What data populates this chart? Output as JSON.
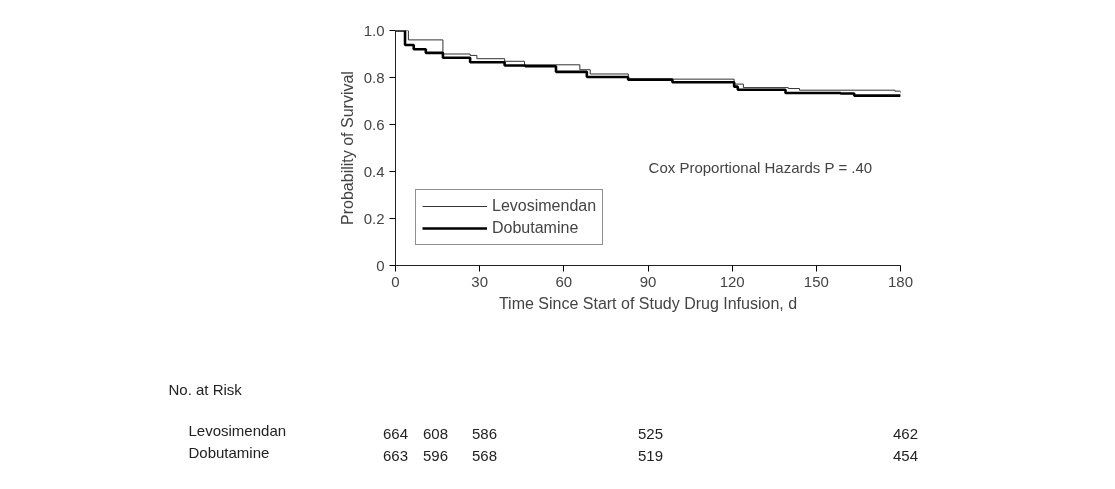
{
  "chart_data": {
    "type": "step",
    "xlabel": "Time Since Start of Study Drug Infusion, d",
    "ylabel": "Probability of Survival",
    "xlim": [
      0,
      180
    ],
    "ylim": [
      0,
      1
    ],
    "xticks": [
      0,
      30,
      60,
      90,
      120,
      150,
      180
    ],
    "yticks": [
      {
        "value": 0,
        "label": "0"
      },
      0.2,
      0.4,
      0.6,
      0.8,
      {
        "value": 1,
        "label": "1.0"
      }
    ],
    "grid": false,
    "legend": "bottom left",
    "marker": "none",
    "line_style": "solid",
    "series": [
      {
        "name": "Levosimendan",
        "color": "#333333",
        "x": [
          0,
          4.6,
          16.9,
          26.6,
          29,
          38.9,
          46,
          65.7,
          69.4,
          83,
          120.7,
          124,
          140,
          144,
          178,
          180
        ],
        "values": [
          1.0,
          0.96,
          0.9,
          0.894,
          0.88,
          0.869,
          0.854,
          0.833,
          0.815,
          0.793,
          0.772,
          0.757,
          0.753,
          0.746,
          0.742,
          0.735
        ]
      },
      {
        "name": "Dobutamine",
        "color": "#000000",
        "x": [
          0,
          3.4,
          6.5,
          10.8,
          16.9,
          26.6,
          38.9,
          46.2,
          57.2,
          68.2,
          82.9,
          98.7,
          120.7,
          122,
          139,
          158.6,
          163.5,
          180
        ],
        "values": [
          1.0,
          0.938,
          0.92,
          0.905,
          0.884,
          0.865,
          0.851,
          0.848,
          0.824,
          0.802,
          0.791,
          0.78,
          0.761,
          0.748,
          0.734,
          0.732,
          0.723,
          0.72
        ]
      }
    ],
    "annotations": [
      "Cox Proportional Hazards P = .40",
      "No. at Risk",
      "Levosimendan",
      "664",
      "608",
      "586",
      "525",
      "462",
      "Dobutamine",
      "663",
      "596",
      "568",
      "519",
      "454"
    ]
  }
}
